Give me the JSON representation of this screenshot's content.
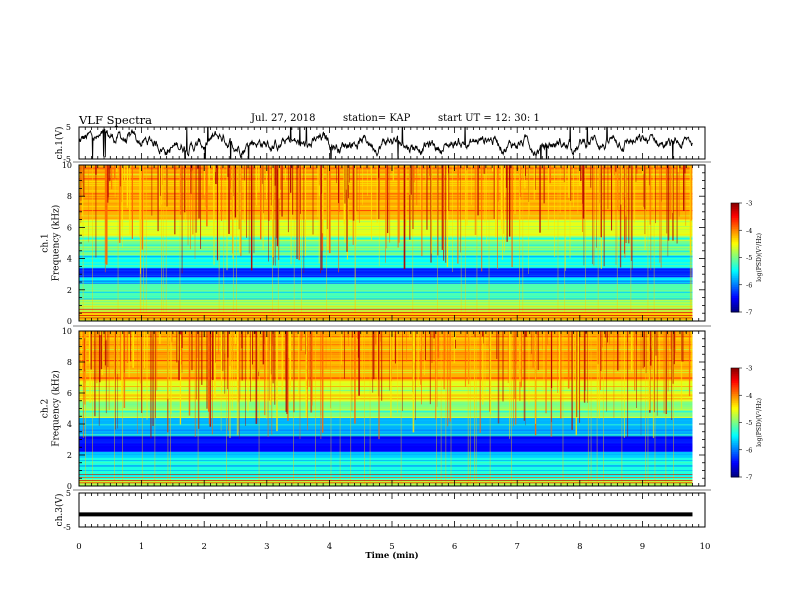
{
  "header": {
    "title": "VLF Spectra",
    "date": "Jul. 27, 2018",
    "station": "station= KAP",
    "start": "start UT =  12: 30: 1"
  },
  "chart_data": [
    {
      "type": "line",
      "panel": "ch1-waveform",
      "ylabel": "ch.1(V)",
      "ylim": [
        -5,
        5
      ],
      "yticks": [
        5,
        -5
      ],
      "xlim": [
        0,
        10
      ],
      "description_of_data": "voltage waveform, values roughly between -5 and 5 V over 0-9.8 min",
      "x_end": 9.8
    },
    {
      "type": "heatmap",
      "panel": "ch1-spectrogram",
      "ylabel": "ch.1\nFrequency (kHz)",
      "ylabel_line1": "ch.1",
      "ylabel_line2": "Frequency (kHz)",
      "ylim": [
        0,
        10
      ],
      "yticks": [
        0,
        2,
        4,
        6,
        8,
        10
      ],
      "xlim": [
        0,
        10
      ],
      "x_end": 9.8,
      "colorbar": {
        "label": "log(PSD)(V²/Hz)",
        "range": [
          -7,
          -3
        ],
        "ticks": [
          -3,
          -4,
          -5,
          -6,
          -7
        ]
      },
      "bands": [
        {
          "f": [
            0.0,
            0.5
          ],
          "level": -4.2
        },
        {
          "f": [
            0.5,
            1.4
          ],
          "level": -4.8
        },
        {
          "f": [
            1.4,
            2.4
          ],
          "level": -5.2
        },
        {
          "f": [
            2.4,
            2.8
          ],
          "level": -5.6
        },
        {
          "f": [
            2.8,
            3.4
          ],
          "level": -6.4
        },
        {
          "f": [
            3.4,
            4.2
          ],
          "level": -5.5
        },
        {
          "f": [
            4.2,
            5.4
          ],
          "level": -5.1
        },
        {
          "f": [
            5.4,
            6.5
          ],
          "level": -4.6
        },
        {
          "f": [
            6.5,
            10.0
          ],
          "level": -4.2
        }
      ]
    },
    {
      "type": "heatmap",
      "panel": "ch2-spectrogram",
      "ylabel": "ch.2\nFrequency (kHz)",
      "ylabel_line1": "ch.2",
      "ylabel_line2": "Frequency (kHz)",
      "ylim": [
        0,
        10
      ],
      "yticks": [
        0,
        2,
        4,
        6,
        8,
        10
      ],
      "xlim": [
        0,
        10
      ],
      "x_end": 9.8,
      "colorbar": {
        "label": "log(PSD)(V²/Hz)",
        "range": [
          -7,
          -3
        ],
        "ticks": [
          -3,
          -4,
          -5,
          -6,
          -7
        ]
      },
      "bands": [
        {
          "f": [
            0.0,
            0.4
          ],
          "level": -4.8
        },
        {
          "f": [
            0.4,
            1.8
          ],
          "level": -5.4
        },
        {
          "f": [
            1.8,
            2.2
          ],
          "level": -5.7
        },
        {
          "f": [
            2.2,
            3.2
          ],
          "level": -6.5
        },
        {
          "f": [
            3.2,
            4.4
          ],
          "level": -5.8
        },
        {
          "f": [
            4.4,
            5.5
          ],
          "level": -5.0
        },
        {
          "f": [
            5.5,
            6.8
          ],
          "level": -4.6
        },
        {
          "f": [
            6.8,
            10.0
          ],
          "level": -4.2
        }
      ]
    },
    {
      "type": "line",
      "panel": "ch3-waveform",
      "ylabel": "ch.3(V)",
      "ylim": [
        -5,
        5
      ],
      "yticks": [
        5,
        -5
      ],
      "xlim": [
        0,
        10
      ],
      "x_end": 9.8,
      "constant_value": -1.3
    }
  ],
  "xaxis": {
    "label": "Time (min)",
    "ticks": [
      "0",
      "1",
      "2",
      "3",
      "4",
      "5",
      "6",
      "7",
      "8",
      "9",
      "10"
    ]
  }
}
